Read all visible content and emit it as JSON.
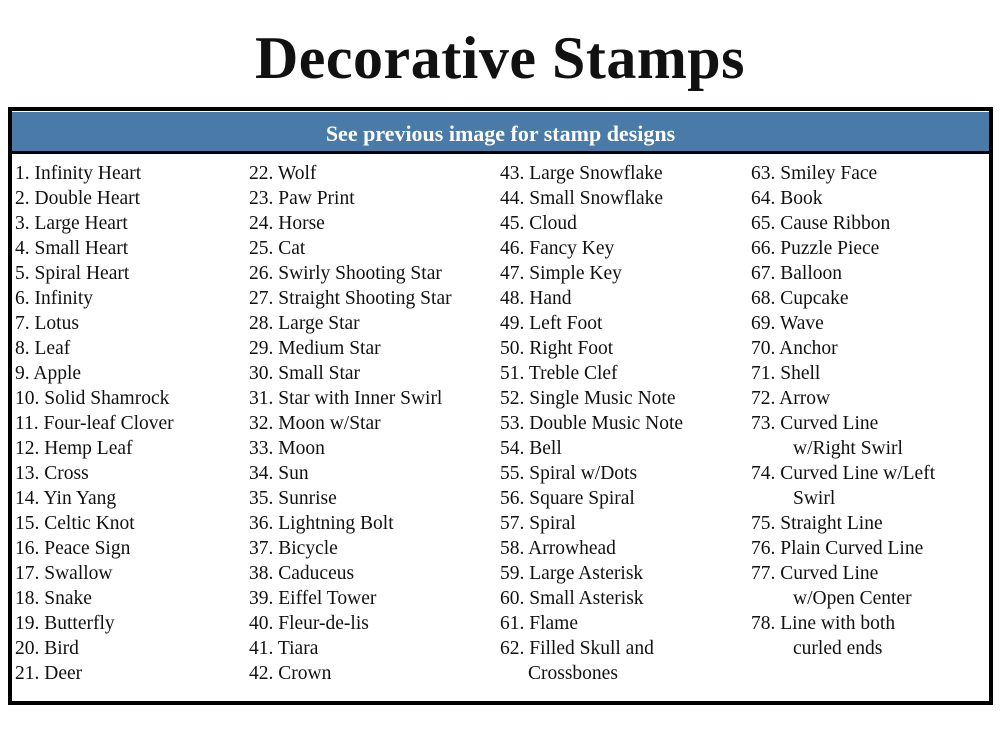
{
  "title": "Decorative Stamps",
  "header": "See previous image for stamp designs",
  "columns": [
    [
      {
        "t": "1. Infinity Heart"
      },
      {
        "t": "2. Double Heart"
      },
      {
        "t": "3. Large Heart"
      },
      {
        "t": "4. Small Heart"
      },
      {
        "t": "5. Spiral Heart"
      },
      {
        "t": "6. Infinity"
      },
      {
        "t": "7. Lotus"
      },
      {
        "t": "8. Leaf"
      },
      {
        "t": "9. Apple"
      },
      {
        "t": "10. Solid Shamrock"
      },
      {
        "t": "11. Four-leaf Clover"
      },
      {
        "t": "12. Hemp Leaf"
      },
      {
        "t": "13. Cross"
      },
      {
        "t": "14. Yin Yang"
      },
      {
        "t": "15. Celtic Knot"
      },
      {
        "t": "16. Peace Sign"
      },
      {
        "t": "17. Swallow"
      },
      {
        "t": "18. Snake"
      },
      {
        "t": "19. Butterfly"
      },
      {
        "t": "20. Bird"
      },
      {
        "t": "21. Deer"
      }
    ],
    [
      {
        "t": "22. Wolf"
      },
      {
        "t": "23. Paw Print"
      },
      {
        "t": "24. Horse"
      },
      {
        "t": "25. Cat"
      },
      {
        "t": "26. Swirly Shooting Star"
      },
      {
        "t": "27. Straight Shooting Star"
      },
      {
        "t": "28. Large Star"
      },
      {
        "t": "29. Medium Star"
      },
      {
        "t": "30. Small Star"
      },
      {
        "t": "31. Star with Inner Swirl"
      },
      {
        "t": "32. Moon w/Star"
      },
      {
        "t": "33. Moon"
      },
      {
        "t": "34. Sun"
      },
      {
        "t": "35. Sunrise"
      },
      {
        "t": "36. Lightning Bolt"
      },
      {
        "t": "37. Bicycle"
      },
      {
        "t": "38. Caduceus"
      },
      {
        "t": "39. Eiffel Tower"
      },
      {
        "t": "40. Fleur-de-lis"
      },
      {
        "t": "41. Tiara"
      },
      {
        "t": "42. Crown"
      }
    ],
    [
      {
        "t": "43. Large Snowflake"
      },
      {
        "t": "44. Small Snowflake"
      },
      {
        "t": "45. Cloud"
      },
      {
        "t": "46. Fancy Key"
      },
      {
        "t": "47. Simple Key"
      },
      {
        "t": "48. Hand"
      },
      {
        "t": "49. Left Foot"
      },
      {
        "t": "50. Right Foot"
      },
      {
        "t": "51. Treble Clef"
      },
      {
        "t": "52. Single Music Note"
      },
      {
        "t": "53. Double Music Note"
      },
      {
        "t": "54. Bell"
      },
      {
        "t": "55. Spiral w/Dots"
      },
      {
        "t": "56. Square Spiral"
      },
      {
        "t": "57. Spiral"
      },
      {
        "t": "58. Arrowhead"
      },
      {
        "t": "59. Large Asterisk"
      },
      {
        "t": "60. Small Asterisk"
      },
      {
        "t": "61. Flame"
      },
      {
        "t": "62. Filled Skull and",
        "t2": "Crossbones"
      }
    ],
    [
      {
        "t": "63. Smiley Face"
      },
      {
        "t": "64. Book"
      },
      {
        "t": "65. Cause Ribbon"
      },
      {
        "t": "66. Puzzle Piece"
      },
      {
        "t": "67. Balloon"
      },
      {
        "t": "68. Cupcake"
      },
      {
        "t": "69. Wave"
      },
      {
        "t": "70. Anchor"
      },
      {
        "t": "71. Shell"
      },
      {
        "t": "72. Arrow"
      },
      {
        "t": "73. Curved Line",
        "t2": "w/Right Swirl"
      },
      {
        "t": "74. Curved Line w/Left",
        "t2": "Swirl"
      },
      {
        "t": "75. Straight Line"
      },
      {
        "t": "76. Plain Curved Line"
      },
      {
        "t": "77. Curved Line",
        "t2": "w/Open  Center"
      },
      {
        "t": "78. Line with both",
        "t2": "curled ends"
      }
    ]
  ]
}
